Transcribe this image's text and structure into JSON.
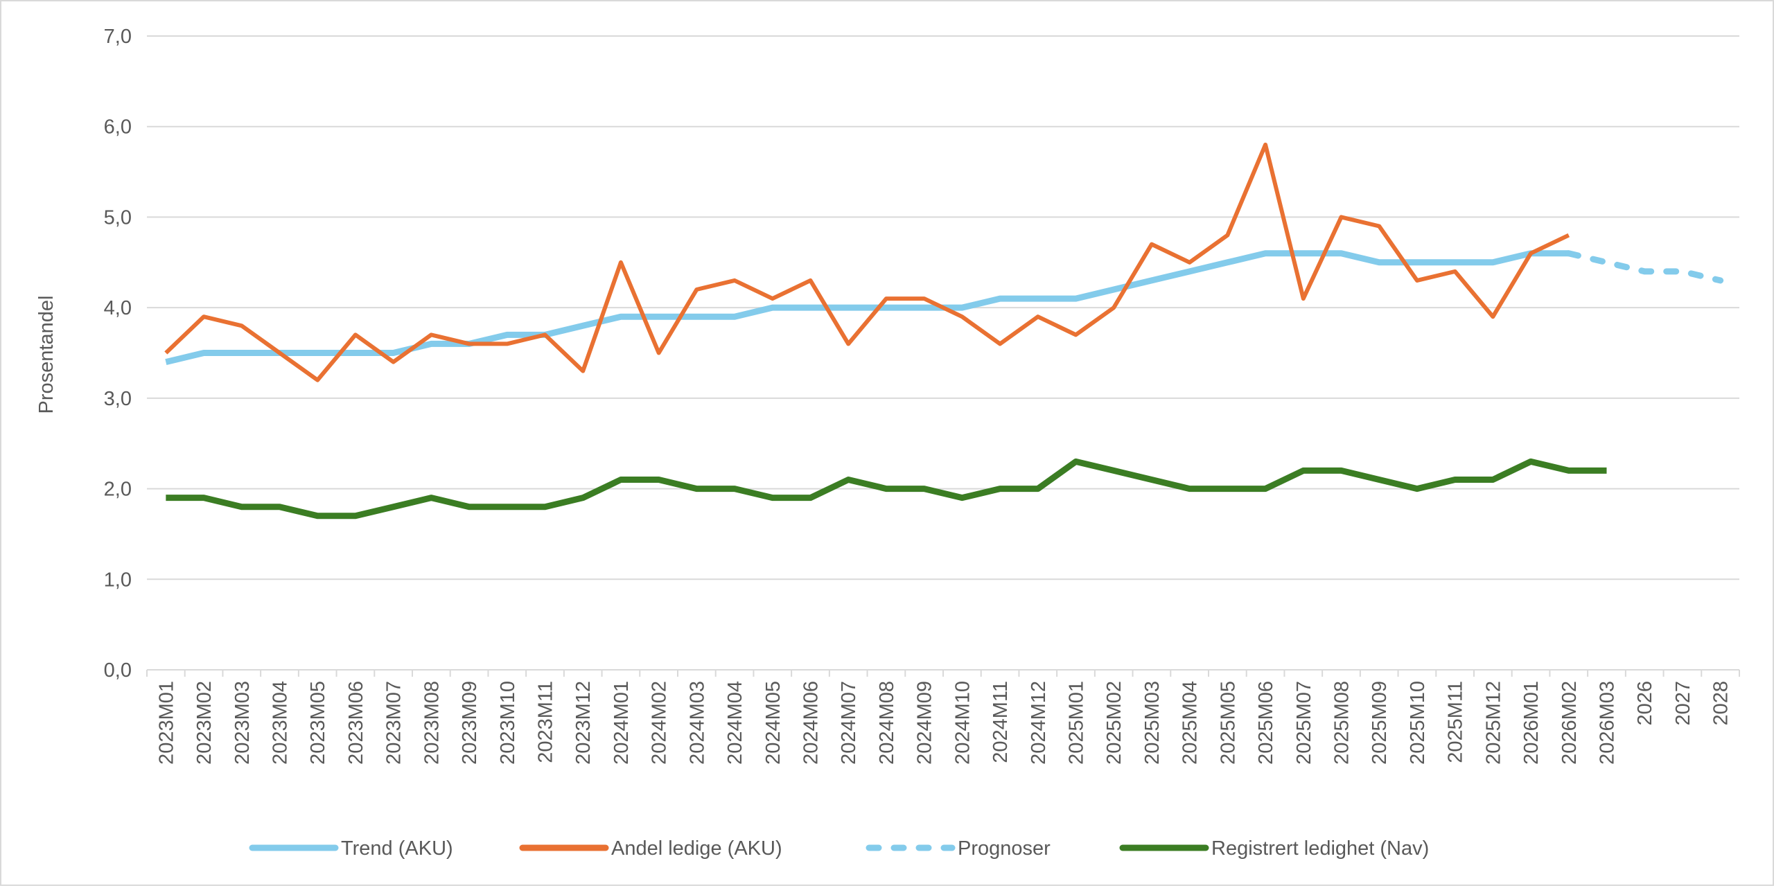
{
  "chart_data": {
    "type": "line",
    "title": "",
    "xlabel": "",
    "ylabel": "Prosentandel",
    "ylim": [
      0,
      7
    ],
    "yticks": [
      "0,0",
      "1,0",
      "2,0",
      "3,0",
      "4,0",
      "5,0",
      "6,0",
      "7,0"
    ],
    "grid": true,
    "legend_position": "bottom",
    "categories": [
      "2023M01",
      "2023M02",
      "2023M03",
      "2023M04",
      "2023M05",
      "2023M06",
      "2023M07",
      "2023M08",
      "2023M09",
      "2023M10",
      "2023M11",
      "2023M12",
      "2024M01",
      "2024M02",
      "2024M03",
      "2024M04",
      "2024M05",
      "2024M06",
      "2024M07",
      "2024M08",
      "2024M09",
      "2024M10",
      "2024M11",
      "2024M12",
      "2025M01",
      "2025M02",
      "2025M03",
      "2025M04",
      "2025M05",
      "2025M06",
      "2025M07",
      "2025M08",
      "2025M09",
      "2025M10",
      "2025M11",
      "2025M12",
      "2026M01",
      "2026M02",
      "2026M03",
      "2026",
      "2027",
      "2028"
    ],
    "series": [
      {
        "name": "Trend (AKU)",
        "color": "#83cbeb",
        "dash": false,
        "values": [
          3.4,
          3.5,
          3.5,
          3.5,
          3.5,
          3.5,
          3.5,
          3.6,
          3.6,
          3.7,
          3.7,
          3.8,
          3.9,
          3.9,
          3.9,
          3.9,
          4.0,
          4.0,
          4.0,
          4.0,
          4.0,
          4.0,
          4.1,
          4.1,
          4.1,
          4.2,
          4.3,
          4.4,
          4.5,
          4.6,
          4.6,
          4.6,
          4.5,
          4.5,
          4.5,
          4.5,
          4.6,
          4.6,
          null,
          null,
          null,
          null
        ]
      },
      {
        "name": "Andel ledige (AKU)",
        "color": "#e97132",
        "dash": false,
        "values": [
          3.5,
          3.9,
          3.8,
          3.5,
          3.2,
          3.7,
          3.4,
          3.7,
          3.6,
          3.6,
          3.7,
          3.3,
          4.5,
          3.5,
          4.2,
          4.3,
          4.1,
          4.3,
          3.6,
          4.1,
          4.1,
          3.9,
          3.6,
          3.9,
          3.7,
          4.0,
          4.7,
          4.5,
          4.8,
          5.8,
          4.1,
          5.0,
          4.9,
          4.3,
          4.4,
          3.9,
          4.6,
          4.8,
          null,
          null,
          null,
          null
        ]
      },
      {
        "name": "Prognoser",
        "color": "#83cbeb",
        "dash": true,
        "values": [
          null,
          null,
          null,
          null,
          null,
          null,
          null,
          null,
          null,
          null,
          null,
          null,
          null,
          null,
          null,
          null,
          null,
          null,
          null,
          null,
          null,
          null,
          null,
          null,
          null,
          null,
          null,
          null,
          null,
          null,
          null,
          null,
          null,
          null,
          null,
          null,
          null,
          4.6,
          4.5,
          4.4,
          4.4,
          4.3
        ]
      },
      {
        "name": "Registrert ledighet (Nav)",
        "color": "#3b7d23",
        "dash": false,
        "values": [
          1.9,
          1.9,
          1.8,
          1.8,
          1.7,
          1.7,
          1.8,
          1.9,
          1.8,
          1.8,
          1.8,
          1.9,
          2.1,
          2.1,
          2.0,
          2.0,
          1.9,
          1.9,
          2.1,
          2.0,
          2.0,
          1.9,
          2.0,
          2.0,
          2.3,
          2.2,
          2.1,
          2.0,
          2.0,
          2.0,
          2.2,
          2.2,
          2.1,
          2.0,
          2.1,
          2.1,
          2.3,
          2.2,
          2.2,
          null,
          null,
          null
        ]
      }
    ]
  }
}
